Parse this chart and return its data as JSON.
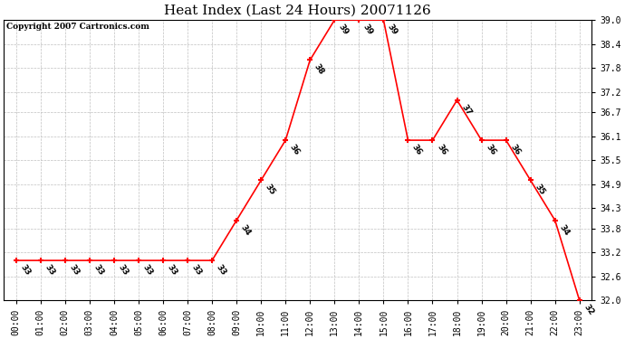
{
  "title": "Heat Index (Last 24 Hours) 20071126",
  "copyright": "Copyright 2007 Cartronics.com",
  "hours": [
    "00:00",
    "01:00",
    "02:00",
    "03:00",
    "04:00",
    "05:00",
    "06:00",
    "07:00",
    "08:00",
    "09:00",
    "10:00",
    "11:00",
    "12:00",
    "13:00",
    "14:00",
    "15:00",
    "16:00",
    "17:00",
    "18:00",
    "19:00",
    "20:00",
    "21:00",
    "22:00",
    "23:00"
  ],
  "values": [
    33,
    33,
    33,
    33,
    33,
    33,
    33,
    33,
    33,
    34,
    35,
    36,
    38,
    39,
    39,
    39,
    36,
    36,
    37,
    36,
    36,
    35,
    34,
    32
  ],
  "ylim": [
    32.0,
    39.0
  ],
  "yticks": [
    32.0,
    32.6,
    33.2,
    33.8,
    34.3,
    34.9,
    35.5,
    36.1,
    36.7,
    37.2,
    37.8,
    38.4,
    39.0
  ],
  "line_color": "red",
  "marker_color": "red",
  "bg_color": "white",
  "plot_bg_color": "white",
  "grid_color": "#c0c0c0",
  "title_fontsize": 11,
  "copyright_fontsize": 6.5,
  "label_fontsize": 6.5,
  "tick_fontsize": 7
}
